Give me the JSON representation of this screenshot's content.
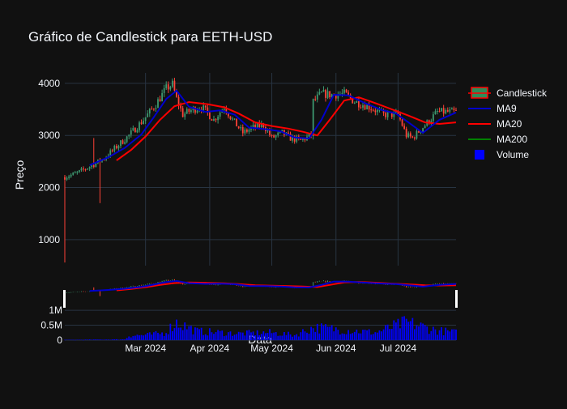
{
  "chart_data": {
    "type": "candlestick",
    "title": "Gráfico de Candlestick para EETH-USD",
    "xlabel": "Data",
    "ylabel": "Preço",
    "x_start_date": "2024-01-22",
    "x_end_date": "2024-07-29",
    "x_ticks": [
      "Mar 2024",
      "Apr 2024",
      "May 2024",
      "Jun 2024",
      "Jul 2024"
    ],
    "x_tick_dates": [
      "2024-03-01",
      "2024-04-01",
      "2024-05-01",
      "2024-06-01",
      "2024-07-01"
    ],
    "price_axis": {
      "ylim": [
        500,
        4200
      ],
      "ticks": [
        1000,
        2000,
        3000,
        4000
      ],
      "tick_labels": [
        "1000",
        "2000",
        "3000",
        "4000"
      ]
    },
    "volume_axis": {
      "ylim": [
        0,
        1300000
      ],
      "ticks": [
        0,
        500000,
        1000000
      ],
      "tick_labels": [
        "0",
        "0.5M",
        "1M"
      ]
    },
    "grid": true,
    "legend_position": "top-right",
    "legend": [
      {
        "name": "Candlestick",
        "kind": "candle",
        "color": "#ff0000",
        "fill": "#2e8b57"
      },
      {
        "name": "MA9",
        "kind": "line",
        "color": "#0000cd"
      },
      {
        "name": "MA20",
        "kind": "line",
        "color": "#ff0000"
      },
      {
        "name": "MA200",
        "kind": "line",
        "color": "#008000"
      },
      {
        "name": "Volume",
        "kind": "square",
        "color": "#0000ff"
      }
    ],
    "colors": {
      "increasing": "#3d9970",
      "decreasing": "#ff4136",
      "ma9": "#0000cd",
      "ma20": "#ff0000",
      "volume": "#0000ff"
    },
    "price_path": [
      [
        "2024-01-22",
        2200
      ],
      [
        "2024-01-28",
        2280
      ],
      [
        "2024-02-04",
        2420
      ],
      [
        "2024-02-10",
        2560
      ],
      [
        "2024-02-17",
        2820
      ],
      [
        "2024-02-22",
        3000
      ],
      [
        "2024-02-29",
        3300
      ],
      [
        "2024-03-06",
        3600
      ],
      [
        "2024-03-11",
        3900
      ],
      [
        "2024-03-14",
        3980
      ],
      [
        "2024-03-16",
        3700
      ],
      [
        "2024-03-19",
        3400
      ],
      [
        "2024-03-24",
        3500
      ],
      [
        "2024-03-28",
        3550
      ],
      [
        "2024-04-03",
        3300
      ],
      [
        "2024-04-08",
        3550
      ],
      [
        "2024-04-12",
        3300
      ],
      [
        "2024-04-17",
        3050
      ],
      [
        "2024-04-22",
        3150
      ],
      [
        "2024-04-27",
        3200
      ],
      [
        "2024-05-01",
        2950
      ],
      [
        "2024-05-06",
        3050
      ],
      [
        "2024-05-10",
        2950
      ],
      [
        "2024-05-15",
        2900
      ],
      [
        "2024-05-20",
        3000
      ],
      [
        "2024-05-21",
        3650
      ],
      [
        "2024-05-25",
        3800
      ],
      [
        "2024-05-30",
        3780
      ],
      [
        "2024-06-05",
        3800
      ],
      [
        "2024-06-10",
        3650
      ],
      [
        "2024-06-17",
        3550
      ],
      [
        "2024-06-24",
        3400
      ],
      [
        "2024-07-01",
        3400
      ],
      [
        "2024-07-05",
        3000
      ],
      [
        "2024-07-08",
        2950
      ],
      [
        "2024-07-14",
        3200
      ],
      [
        "2024-07-20",
        3450
      ],
      [
        "2024-07-29",
        3450
      ]
    ],
    "ma9": [
      [
        "2024-02-03",
        2430
      ],
      [
        "2024-02-12",
        2580
      ],
      [
        "2024-02-20",
        2760
      ],
      [
        "2024-02-28",
        3020
      ],
      [
        "2024-03-05",
        3350
      ],
      [
        "2024-03-11",
        3700
      ],
      [
        "2024-03-16",
        3860
      ],
      [
        "2024-03-22",
        3550
      ],
      [
        "2024-03-30",
        3450
      ],
      [
        "2024-04-06",
        3480
      ],
      [
        "2024-04-13",
        3400
      ],
      [
        "2024-04-20",
        3150
      ],
      [
        "2024-04-28",
        3120
      ],
      [
        "2024-05-05",
        3080
      ],
      [
        "2024-05-12",
        2960
      ],
      [
        "2024-05-19",
        2940
      ],
      [
        "2024-05-25",
        3300
      ],
      [
        "2024-05-31",
        3780
      ],
      [
        "2024-06-07",
        3770
      ],
      [
        "2024-06-15",
        3620
      ],
      [
        "2024-06-23",
        3490
      ],
      [
        "2024-06-30",
        3420
      ],
      [
        "2024-07-06",
        3250
      ],
      [
        "2024-07-13",
        3050
      ],
      [
        "2024-07-21",
        3300
      ],
      [
        "2024-07-29",
        3440
      ]
    ],
    "ma20": [
      [
        "2024-02-16",
        2520
      ],
      [
        "2024-02-23",
        2720
      ],
      [
        "2024-03-01",
        2980
      ],
      [
        "2024-03-08",
        3300
      ],
      [
        "2024-03-15",
        3560
      ],
      [
        "2024-03-22",
        3640
      ],
      [
        "2024-03-31",
        3600
      ],
      [
        "2024-04-08",
        3540
      ],
      [
        "2024-04-15",
        3420
      ],
      [
        "2024-04-23",
        3250
      ],
      [
        "2024-05-01",
        3180
      ],
      [
        "2024-05-09",
        3130
      ],
      [
        "2024-05-16",
        3070
      ],
      [
        "2024-05-23",
        3000
      ],
      [
        "2024-05-29",
        3300
      ],
      [
        "2024-06-05",
        3670
      ],
      [
        "2024-06-12",
        3730
      ],
      [
        "2024-06-20",
        3620
      ],
      [
        "2024-06-28",
        3500
      ],
      [
        "2024-07-06",
        3380
      ],
      [
        "2024-07-14",
        3250
      ],
      [
        "2024-07-21",
        3220
      ],
      [
        "2024-07-29",
        3250
      ]
    ],
    "volume_profile": [
      [
        "2024-01-22",
        10000
      ],
      [
        "2024-02-20",
        30000
      ],
      [
        "2024-02-22",
        180000
      ],
      [
        "2024-03-01",
        200000
      ],
      [
        "2024-03-10",
        280000
      ],
      [
        "2024-03-16",
        700000
      ],
      [
        "2024-03-26",
        350000
      ],
      [
        "2024-04-15",
        260000
      ],
      [
        "2024-04-30",
        300000
      ],
      [
        "2024-05-12",
        200000
      ],
      [
        "2024-05-21",
        500000
      ],
      [
        "2024-06-03",
        420000
      ],
      [
        "2024-06-20",
        300000
      ],
      [
        "2024-07-05",
        700000
      ],
      [
        "2024-07-20",
        380000
      ],
      [
        "2024-07-29",
        300000
      ]
    ]
  }
}
